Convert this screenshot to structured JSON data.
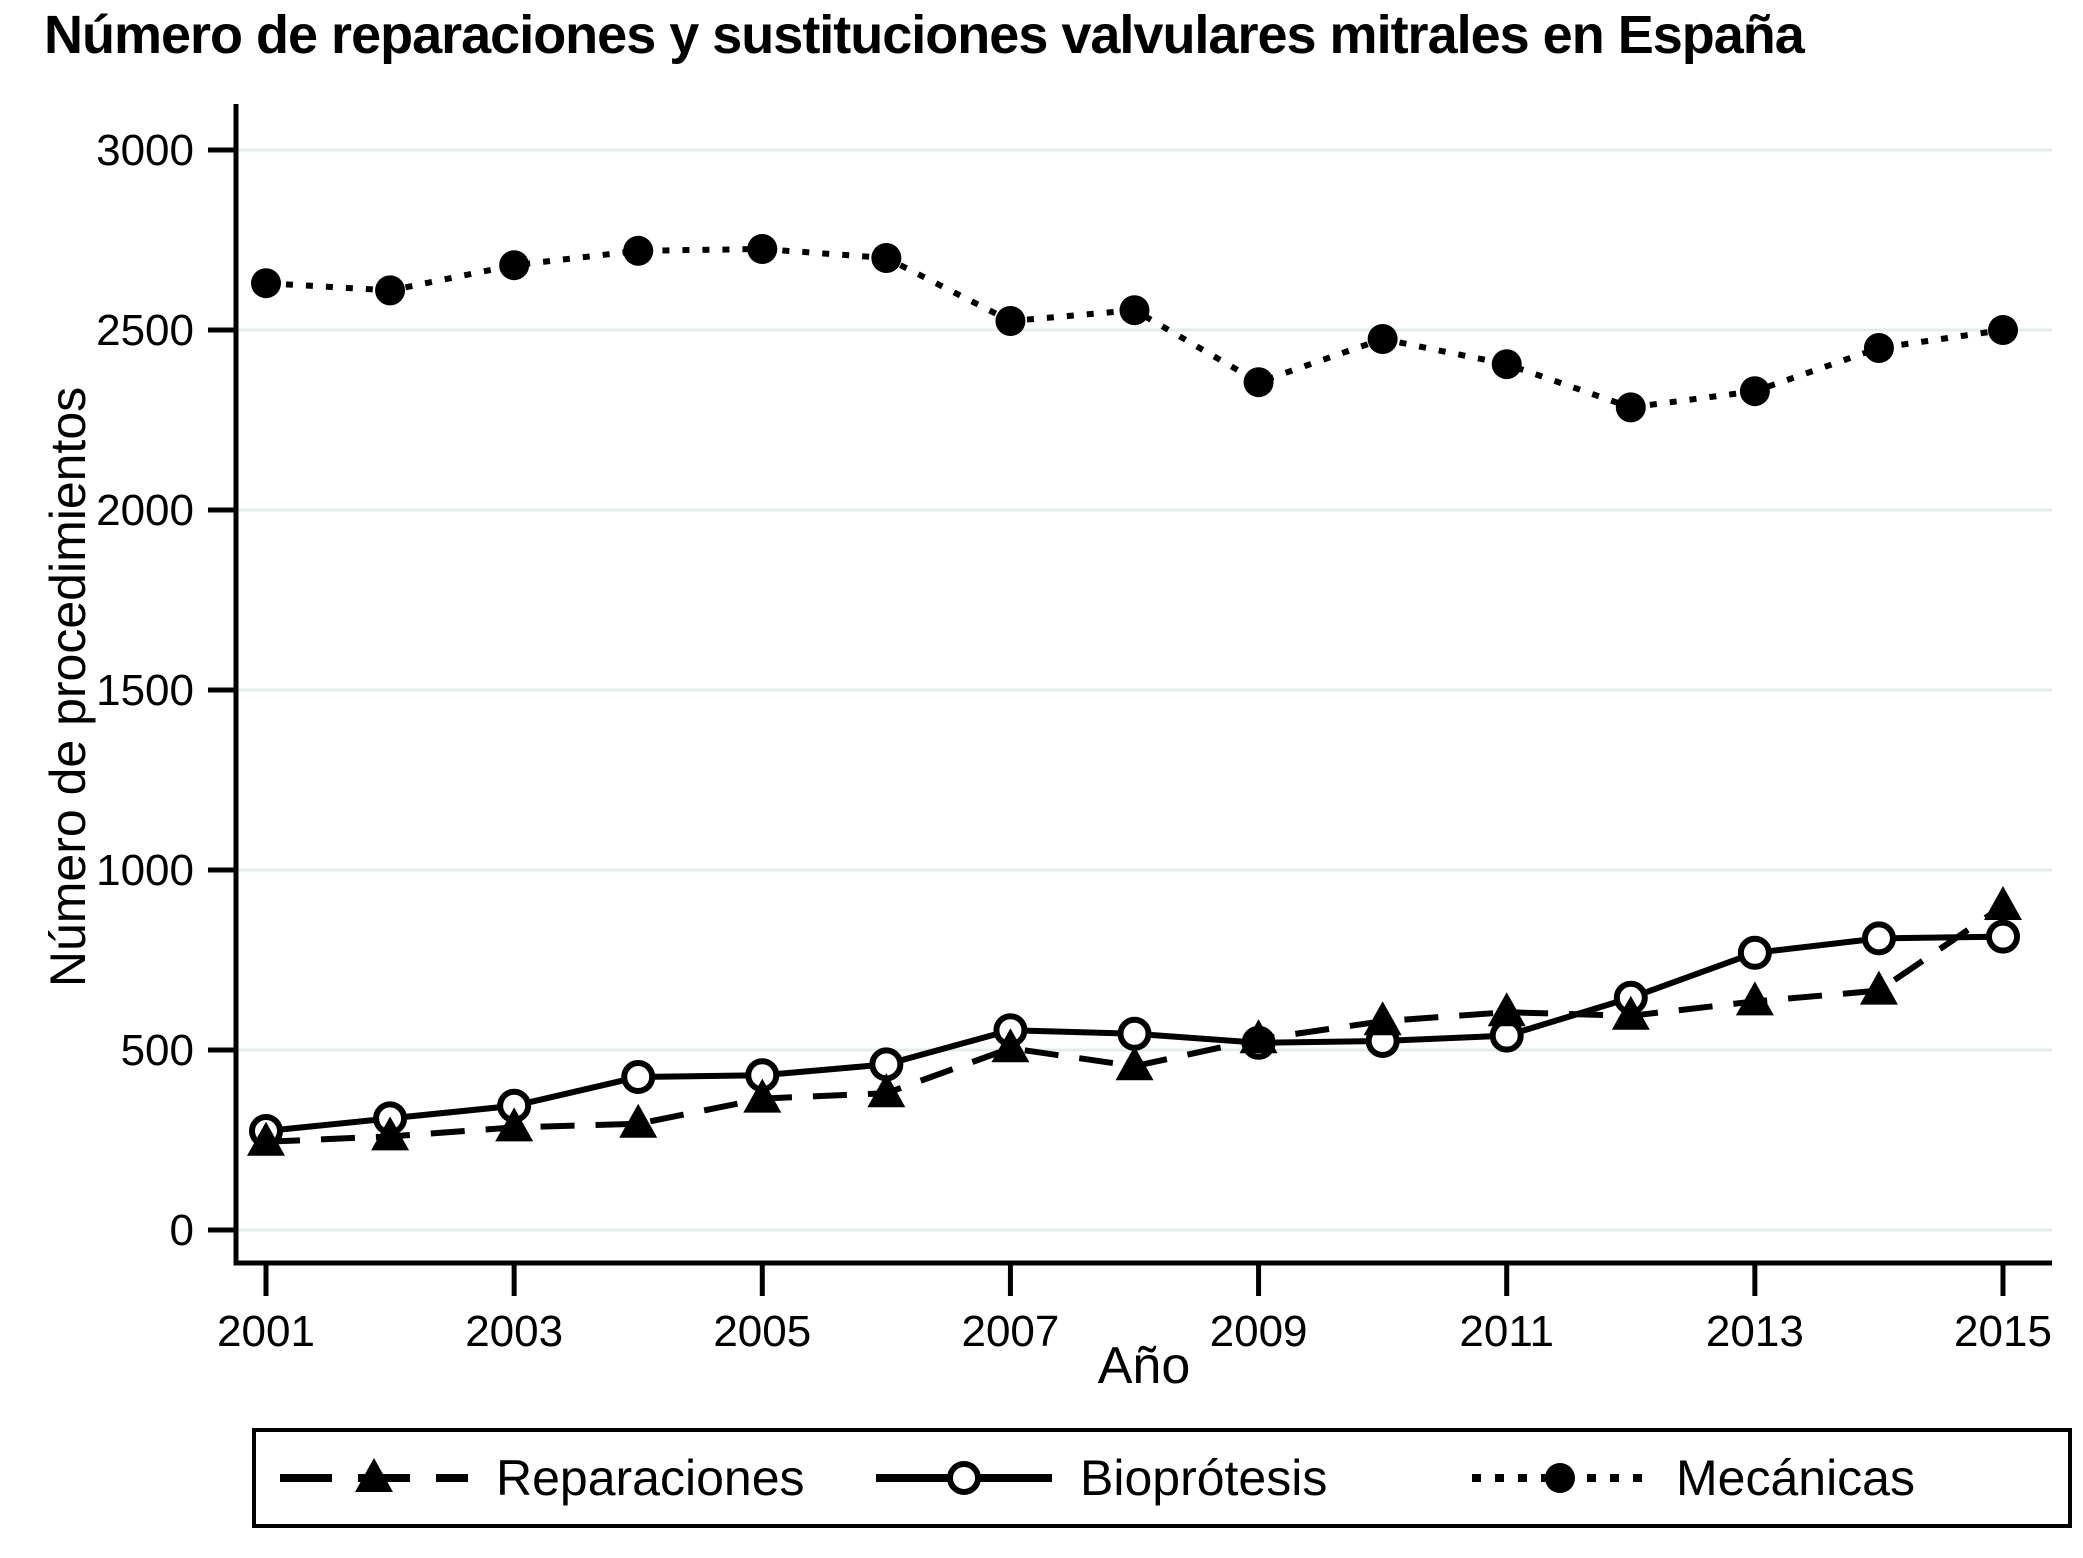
{
  "title": "Número de reparaciones y sustituciones valvulares mitrales en España",
  "y_axis": {
    "title": "Número de procedimientos"
  },
  "x_axis": {
    "title": "Año"
  },
  "legend": {
    "items": [
      {
        "label": "Reparaciones",
        "marker": "filled-triangle",
        "line": "dashed"
      },
      {
        "label": "Bioprótesis",
        "marker": "open-circle",
        "line": "solid"
      },
      {
        "label": "Mecánicas",
        "marker": "filled-circle",
        "line": "dotted"
      }
    ]
  },
  "colors": {
    "series": "#000000",
    "gridline": "#e2eced",
    "axis": "#000000",
    "background": "#ffffff"
  },
  "chart_data": {
    "type": "line",
    "title": "Número de reparaciones y sustituciones valvulares mitrales en España",
    "xlabel": "Año",
    "ylabel": "Número de procedimientos",
    "x": [
      2001,
      2002,
      2003,
      2004,
      2005,
      2006,
      2007,
      2008,
      2009,
      2010,
      2011,
      2012,
      2013,
      2014,
      2015
    ],
    "xticks": [
      2001,
      2003,
      2005,
      2007,
      2009,
      2011,
      2013,
      2015
    ],
    "yticks": [
      0,
      500,
      1000,
      1500,
      2000,
      2500,
      3000
    ],
    "ylim": [
      0,
      3000
    ],
    "grid": "horizontal",
    "legend_position": "bottom",
    "series": [
      {
        "name": "Reparaciones",
        "marker": "filled-triangle",
        "line": "dashed",
        "draw_order": 2,
        "values": [
          245,
          260,
          285,
          295,
          365,
          380,
          505,
          455,
          530,
          580,
          605,
          595,
          635,
          665,
          900
        ]
      },
      {
        "name": "Bioprótesis",
        "marker": "open-circle",
        "line": "solid",
        "draw_order": 1,
        "values": [
          275,
          310,
          345,
          425,
          430,
          460,
          555,
          545,
          520,
          525,
          540,
          645,
          770,
          810,
          815
        ]
      },
      {
        "name": "Mecánicas",
        "marker": "filled-circle",
        "line": "dotted",
        "draw_order": 3,
        "values": [
          2630,
          2610,
          2680,
          2720,
          2725,
          2700,
          2525,
          2555,
          2355,
          2475,
          2405,
          2285,
          2330,
          2450,
          2500
        ]
      }
    ]
  }
}
